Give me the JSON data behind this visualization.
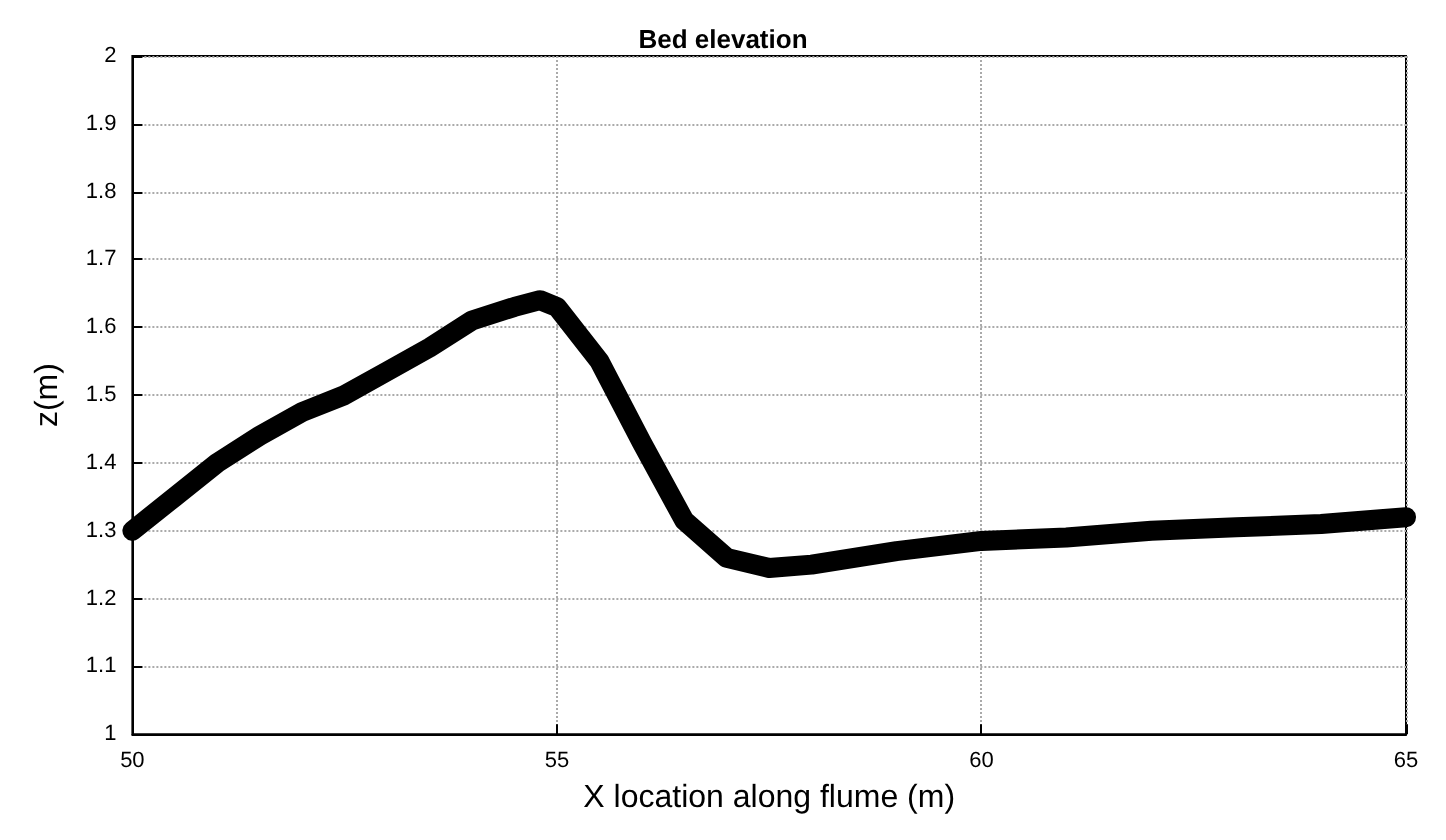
{
  "chart_data": {
    "type": "line",
    "title": "Bed elevation",
    "xlabel": "X location along flume (m)",
    "ylabel": "z(m)",
    "x": [
      50,
      50.5,
      51,
      51.5,
      52,
      52.5,
      53,
      53.5,
      54,
      54.5,
      54.8,
      55,
      55.5,
      56,
      56.5,
      57,
      57.5,
      58,
      59,
      60,
      61,
      62,
      63,
      64,
      65
    ],
    "series": [
      {
        "color": "#000000",
        "values": [
          1.3,
          1.35,
          1.4,
          1.44,
          1.475,
          1.5,
          1.535,
          1.57,
          1.61,
          1.63,
          1.64,
          1.63,
          1.55,
          1.43,
          1.315,
          1.26,
          1.245,
          1.25,
          1.27,
          1.285,
          1.29,
          1.3,
          1.305,
          1.31,
          1.32
        ]
      }
    ],
    "xlim": [
      50,
      65
    ],
    "xticks": [
      50,
      55,
      60,
      65
    ],
    "ylim": [
      1,
      2
    ],
    "yticks": [
      1,
      1.1,
      1.2,
      1.3,
      1.4,
      1.5,
      1.6,
      1.7,
      1.8,
      1.9,
      2
    ],
    "grid": true,
    "line_style": "solid"
  }
}
